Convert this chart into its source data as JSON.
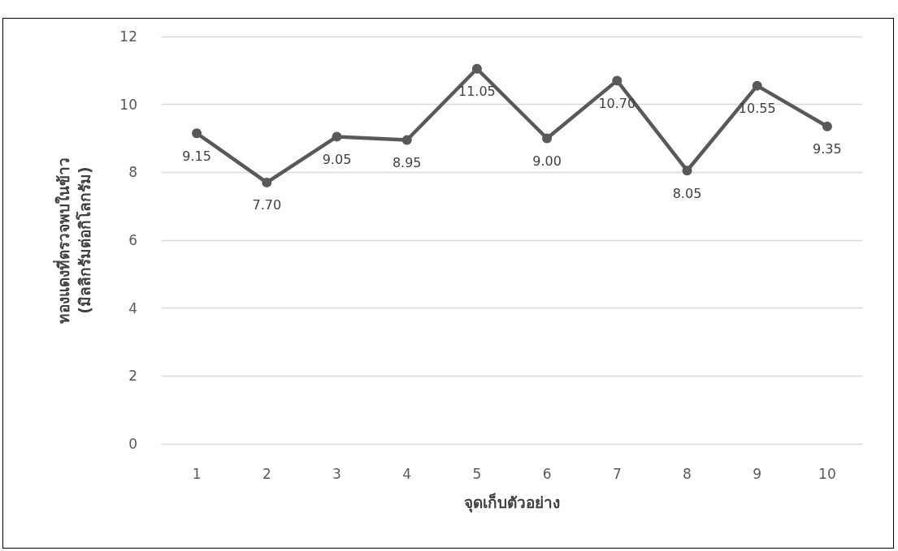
{
  "chart_data": {
    "type": "line",
    "xlabel": "จุดเก็บตัวอย่าง",
    "ylabel": "ทองแดงที่ตรวจพบในข้าว\n(มิลลิกรัมต่อกิโลกรัม)",
    "categories": [
      "1",
      "2",
      "3",
      "4",
      "5",
      "6",
      "7",
      "8",
      "9",
      "10"
    ],
    "series": [
      {
        "color": "#595959",
        "values": [
          9.15,
          7.7,
          9.05,
          8.95,
          11.05,
          9.0,
          10.7,
          8.05,
          10.55,
          9.35
        ],
        "value_labels": [
          "9.15",
          "7.70",
          "9.05",
          "8.95",
          "11.05",
          "9.00",
          "10.70",
          "8.05",
          "10.55",
          "9.35"
        ]
      }
    ],
    "ylim": [
      0,
      12
    ],
    "yticks": [
      0,
      2,
      4,
      6,
      8,
      10,
      12
    ],
    "grid": "y",
    "marker": "circle",
    "line_style": "solid"
  }
}
